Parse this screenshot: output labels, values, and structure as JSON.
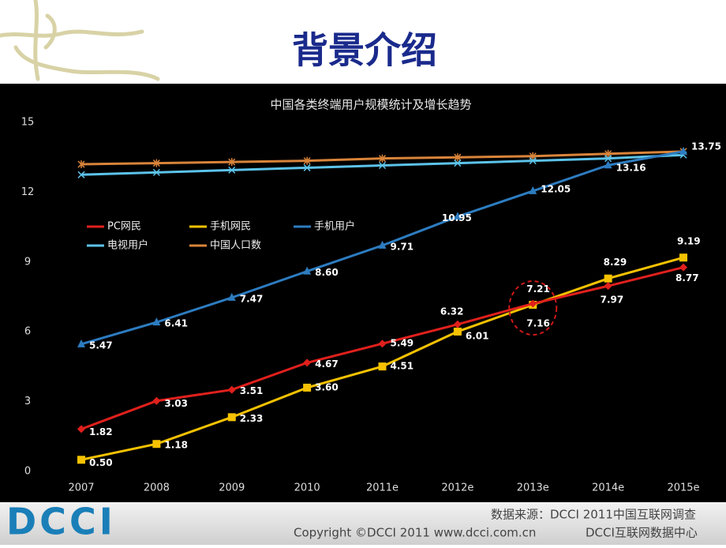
{
  "header": {
    "title": "背景介绍"
  },
  "chart_data": {
    "type": "line",
    "title": "中国各类终端用户规模统计及增长趋势",
    "categories": [
      "2007",
      "2008",
      "2009",
      "2010",
      "2011e",
      "2012e",
      "2013e",
      "2014e",
      "2015e"
    ],
    "ylim": [
      0,
      15
    ],
    "yticks": [
      0,
      3,
      6,
      9,
      12,
      15
    ],
    "series": [
      {
        "name": "PC网民",
        "color": "#e0201c",
        "marker": "diamond",
        "values": [
          1.82,
          3.03,
          3.51,
          4.67,
          5.49,
          6.32,
          7.21,
          7.97,
          8.77
        ],
        "value_labels": [
          "1.82",
          "3.03",
          "3.51",
          "4.67",
          "5.49",
          "6.32",
          "7.21",
          "7.97",
          "8.77"
        ]
      },
      {
        "name": "手机网民",
        "color": "#f6c200",
        "marker": "square",
        "values": [
          0.5,
          1.18,
          2.33,
          3.6,
          4.51,
          6.01,
          7.16,
          8.29,
          9.19
        ],
        "value_labels": [
          "0.50",
          "1.18",
          "2.33",
          "3.60",
          "4.51",
          "6.01",
          "7.16",
          "8.29",
          "9.19"
        ]
      },
      {
        "name": "手机用户",
        "color": "#2d7cc0",
        "marker": "triangle",
        "values": [
          5.47,
          6.41,
          7.47,
          8.6,
          9.71,
          10.95,
          12.05,
          13.16,
          13.75
        ],
        "value_labels": [
          "5.47",
          "6.41",
          "7.47",
          "8.60",
          "9.71",
          "10.95",
          "12.05",
          "13.16",
          "13.75"
        ]
      },
      {
        "name": "电视用户",
        "color": "#5cc3ea",
        "marker": "x",
        "values": [
          12.75,
          12.85,
          12.95,
          13.05,
          13.15,
          13.25,
          13.35,
          13.45,
          13.6
        ]
      },
      {
        "name": "中国人口数",
        "color": "#d9843a",
        "marker": "star",
        "values": [
          13.2,
          13.25,
          13.3,
          13.35,
          13.45,
          13.5,
          13.55,
          13.65,
          13.75
        ]
      }
    ]
  },
  "footer": {
    "logo": "DCCI",
    "source": "数据来源：DCCI 2011中国互联网调查",
    "center": "DCCI互联网数据中心",
    "copyright": "Copyright ©DCCI 2011  www.dcci.com.cn"
  }
}
